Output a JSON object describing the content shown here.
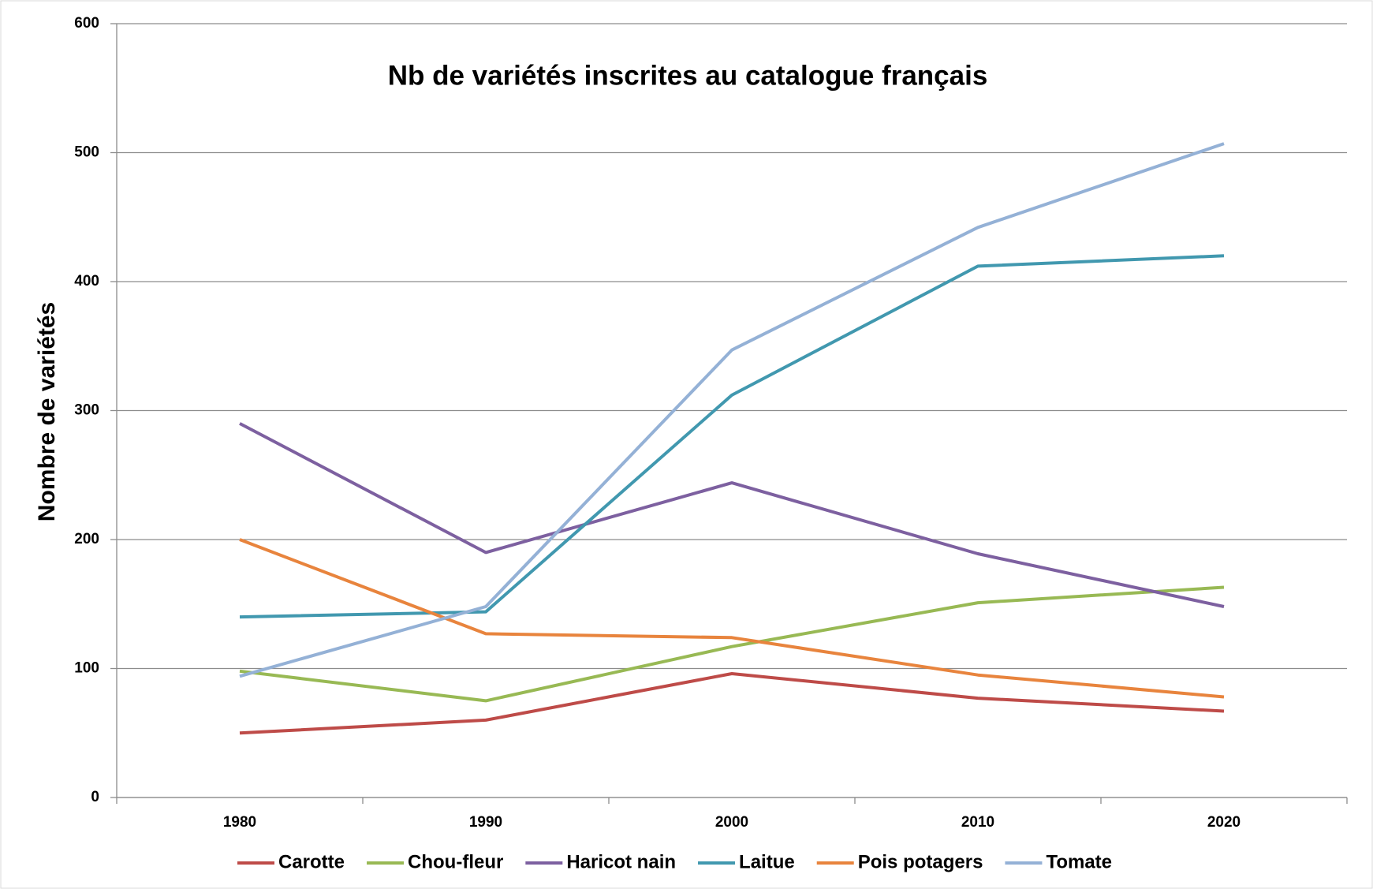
{
  "chart_data": {
    "type": "line",
    "title": "Nb de variétés inscrites au catalogue français",
    "y_label": "Nombre de variétés",
    "categories": [
      "1980",
      "1990",
      "2000",
      "2010",
      "2020"
    ],
    "series": [
      {
        "name": "Carotte",
        "color": "#be4b48",
        "values": [
          50,
          60,
          96,
          77,
          67
        ]
      },
      {
        "name": "Chou-fleur",
        "color": "#98b954",
        "values": [
          98,
          75,
          117,
          151,
          163
        ]
      },
      {
        "name": "Haricot nain",
        "color": "#7d60a0",
        "values": [
          290,
          190,
          244,
          189,
          148
        ]
      },
      {
        "name": "Laitue",
        "color": "#4198af",
        "values": [
          140,
          144,
          312,
          412,
          420
        ]
      },
      {
        "name": "Pois potagers",
        "color": "#e8843d",
        "values": [
          200,
          127,
          124,
          95,
          78
        ]
      },
      {
        "name": "Tomate",
        "color": "#94b1d6",
        "values": [
          94,
          148,
          347,
          442,
          507
        ]
      }
    ],
    "ylim": [
      0,
      600
    ],
    "yticks": [
      0,
      100,
      200,
      300,
      400,
      500,
      600
    ],
    "grid": true,
    "legend": "bottom"
  }
}
